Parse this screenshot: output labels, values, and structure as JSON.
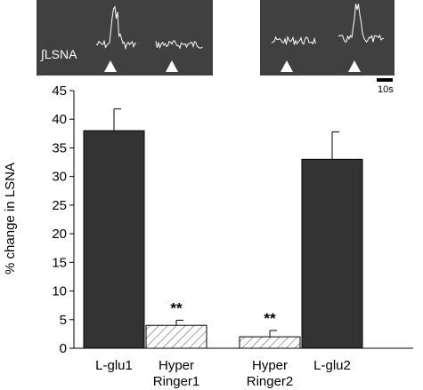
{
  "inset": {
    "trace_label": "∫LSNA",
    "scale_bar_label": "10s"
  },
  "chart_data": {
    "type": "bar",
    "title": "",
    "xlabel": "",
    "ylabel": "% change in LSNA",
    "ylim": [
      0,
      45
    ],
    "yticks": [
      0,
      5,
      10,
      15,
      20,
      25,
      30,
      35,
      40,
      45
    ],
    "grid": false,
    "categories": [
      {
        "lines": [
          "L-glu1"
        ],
        "value": 38.0,
        "error": 3.8,
        "fill": "solid",
        "significance": ""
      },
      {
        "lines": [
          "Hyper",
          "Ringer1"
        ],
        "value": 4.0,
        "error": 0.9,
        "fill": "hatched",
        "significance": "**"
      },
      {
        "lines": [
          "Hyper",
          "Ringer2"
        ],
        "value": 2.0,
        "error": 1.1,
        "fill": "hatched",
        "significance": "**"
      },
      {
        "lines": [
          "L-glu2"
        ],
        "value": 33.0,
        "error": 4.8,
        "fill": "solid",
        "significance": ""
      }
    ],
    "colors": {
      "solid": "#333333",
      "hatch": "#666666",
      "axis": "#000000"
    }
  }
}
